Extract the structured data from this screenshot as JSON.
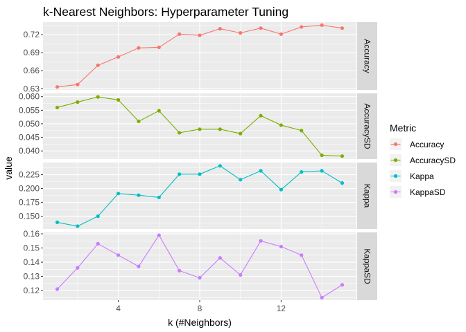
{
  "chart_data": {
    "type": "line",
    "title": "k-Nearest Neighbors: Hyperparameter Tuning",
    "xlabel": "k (#Neighbors)",
    "ylabel": "value",
    "x": [
      1,
      2,
      3,
      4,
      5,
      6,
      7,
      8,
      9,
      10,
      11,
      12,
      13,
      14,
      15
    ],
    "xlim": [
      0.3,
      15.7
    ],
    "x_ticks": [
      4,
      8,
      12
    ],
    "x_tick_labels": [
      "4",
      "8",
      "12"
    ],
    "legend": {
      "title": "Metric",
      "position": "right"
    },
    "grid": true,
    "facet_strip_position": "right",
    "series": [
      {
        "name": "Accuracy",
        "color": "#F8766D",
        "values": [
          0.633,
          0.637,
          0.669,
          0.683,
          0.698,
          0.699,
          0.721,
          0.719,
          0.73,
          0.723,
          0.731,
          0.721,
          0.733,
          0.736,
          0.731
        ],
        "ylim": [
          0.628,
          0.741
        ],
        "y_ticks": [
          0.63,
          0.66,
          0.69,
          0.72
        ],
        "y_tick_labels": [
          "0.63",
          "0.66",
          "0.69",
          "0.72"
        ]
      },
      {
        "name": "AccuracySD",
        "color": "#7CAE00",
        "values": [
          0.056,
          0.058,
          0.0599,
          0.0588,
          0.0509,
          0.0548,
          0.0467,
          0.048,
          0.048,
          0.0464,
          0.053,
          0.0495,
          0.0475,
          0.0384,
          0.0381
        ],
        "ylim": [
          0.037,
          0.0612
        ],
        "y_ticks": [
          0.04,
          0.045,
          0.05,
          0.055,
          0.06
        ],
        "y_tick_labels": [
          "0.040",
          "0.045",
          "0.050",
          "0.055",
          "0.060"
        ]
      },
      {
        "name": "Kappa",
        "color": "#00BFC4",
        "values": [
          0.139,
          0.132,
          0.15,
          0.191,
          0.188,
          0.184,
          0.226,
          0.226,
          0.241,
          0.216,
          0.232,
          0.198,
          0.23,
          0.232,
          0.21
        ],
        "ylim": [
          0.127,
          0.247
        ],
        "y_ticks": [
          0.15,
          0.175,
          0.2,
          0.225
        ],
        "y_tick_labels": [
          "0.150",
          "0.175",
          "0.200",
          "0.225"
        ]
      },
      {
        "name": "KappaSD",
        "color": "#C77CFF",
        "values": [
          0.121,
          0.136,
          0.153,
          0.145,
          0.137,
          0.159,
          0.134,
          0.129,
          0.143,
          0.131,
          0.155,
          0.151,
          0.145,
          0.115,
          0.124
        ],
        "ylim": [
          0.1132,
          0.161
        ],
        "y_ticks": [
          0.12,
          0.13,
          0.14,
          0.15,
          0.16
        ],
        "y_tick_labels": [
          "0.12",
          "0.13",
          "0.14",
          "0.15",
          "0.16"
        ]
      }
    ]
  }
}
